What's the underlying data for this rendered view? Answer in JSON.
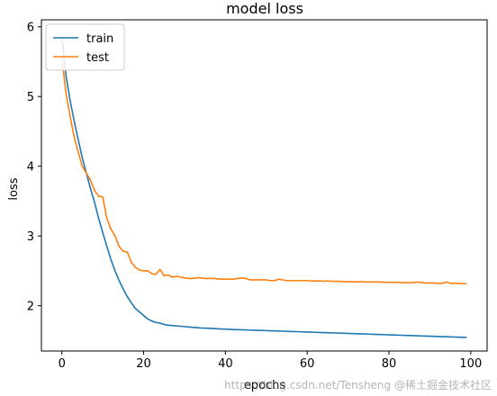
{
  "chart_data": {
    "type": "line",
    "title": "model loss",
    "xlabel": "epochs",
    "ylabel": "loss",
    "xlim": [
      -5,
      104
    ],
    "ylim": [
      1.35,
      6.1
    ],
    "xticks": [
      0,
      20,
      40,
      60,
      80,
      100
    ],
    "yticks": [
      2,
      3,
      4,
      5,
      6
    ],
    "grid": false,
    "legend_position": "top-left",
    "series": [
      {
        "name": "train",
        "color": "#1f77b4",
        "x": [
          0,
          1,
          2,
          3,
          4,
          5,
          6,
          7,
          8,
          9,
          10,
          11,
          12,
          13,
          14,
          15,
          16,
          17,
          18,
          19,
          20,
          21,
          22,
          23,
          24,
          25,
          26,
          27,
          28,
          29,
          30,
          31,
          32,
          33,
          34,
          35,
          36,
          37,
          38,
          39,
          40,
          41,
          42,
          43,
          44,
          45,
          46,
          47,
          48,
          49,
          50,
          51,
          52,
          53,
          54,
          55,
          56,
          57,
          58,
          59,
          60,
          61,
          62,
          63,
          64,
          65,
          66,
          67,
          68,
          69,
          70,
          71,
          72,
          73,
          74,
          75,
          76,
          77,
          78,
          79,
          80,
          81,
          82,
          83,
          84,
          85,
          86,
          87,
          88,
          89,
          90,
          91,
          92,
          93,
          94,
          95,
          96,
          97,
          98,
          99
        ],
        "values": [
          5.85,
          5.3,
          4.95,
          4.65,
          4.38,
          4.12,
          3.9,
          3.68,
          3.48,
          3.25,
          3.05,
          2.85,
          2.66,
          2.5,
          2.36,
          2.24,
          2.13,
          2.04,
          1.96,
          1.91,
          1.86,
          1.81,
          1.78,
          1.76,
          1.75,
          1.73,
          1.72,
          1.715,
          1.71,
          1.705,
          1.7,
          1.695,
          1.69,
          1.685,
          1.68,
          1.678,
          1.675,
          1.672,
          1.669,
          1.666,
          1.663,
          1.66,
          1.658,
          1.656,
          1.654,
          1.652,
          1.65,
          1.648,
          1.646,
          1.644,
          1.642,
          1.64,
          1.638,
          1.636,
          1.634,
          1.632,
          1.63,
          1.628,
          1.626,
          1.624,
          1.622,
          1.62,
          1.618,
          1.616,
          1.614,
          1.612,
          1.61,
          1.608,
          1.606,
          1.604,
          1.602,
          1.6,
          1.598,
          1.596,
          1.594,
          1.592,
          1.59,
          1.588,
          1.586,
          1.584,
          1.582,
          1.58,
          1.578,
          1.576,
          1.574,
          1.572,
          1.57,
          1.568,
          1.566,
          1.564,
          1.562,
          1.56,
          1.558,
          1.556,
          1.554,
          1.552,
          1.55,
          1.548,
          1.546,
          1.544
        ]
      },
      {
        "name": "test",
        "color": "#ff7f0e",
        "x": [
          0,
          1,
          2,
          3,
          4,
          5,
          6,
          7,
          8,
          9,
          10,
          11,
          12,
          13,
          14,
          15,
          16,
          17,
          18,
          19,
          20,
          21,
          22,
          23,
          24,
          25,
          26,
          27,
          28,
          29,
          30,
          31,
          32,
          33,
          34,
          35,
          36,
          37,
          38,
          39,
          40,
          41,
          42,
          43,
          44,
          45,
          46,
          47,
          48,
          49,
          50,
          51,
          52,
          53,
          54,
          55,
          56,
          57,
          58,
          59,
          60,
          61,
          62,
          63,
          64,
          65,
          66,
          67,
          68,
          69,
          70,
          71,
          72,
          73,
          74,
          75,
          76,
          77,
          78,
          79,
          80,
          81,
          82,
          83,
          84,
          85,
          86,
          87,
          88,
          89,
          90,
          91,
          92,
          93,
          94,
          95,
          96,
          97,
          98,
          99
        ],
        "values": [
          5.55,
          5.05,
          4.72,
          4.42,
          4.2,
          4.0,
          3.9,
          3.8,
          3.65,
          3.57,
          3.56,
          3.25,
          3.1,
          3.0,
          2.85,
          2.78,
          2.77,
          2.62,
          2.55,
          2.51,
          2.5,
          2.5,
          2.46,
          2.45,
          2.52,
          2.43,
          2.44,
          2.41,
          2.42,
          2.41,
          2.4,
          2.39,
          2.39,
          2.4,
          2.4,
          2.39,
          2.39,
          2.39,
          2.385,
          2.38,
          2.38,
          2.38,
          2.38,
          2.39,
          2.4,
          2.39,
          2.37,
          2.37,
          2.37,
          2.37,
          2.37,
          2.36,
          2.36,
          2.38,
          2.37,
          2.36,
          2.36,
          2.36,
          2.36,
          2.36,
          2.36,
          2.355,
          2.355,
          2.355,
          2.35,
          2.355,
          2.35,
          2.35,
          2.35,
          2.345,
          2.345,
          2.345,
          2.34,
          2.345,
          2.34,
          2.34,
          2.34,
          2.34,
          2.34,
          2.335,
          2.335,
          2.335,
          2.335,
          2.33,
          2.33,
          2.33,
          2.33,
          2.34,
          2.33,
          2.325,
          2.325,
          2.325,
          2.32,
          2.32,
          2.34,
          2.32,
          2.32,
          2.32,
          2.315,
          2.315
        ]
      }
    ]
  },
  "watermark": {
    "text": "https://blog.csdn.net/Tensheng",
    "badge": "@稀土掘金技术社区"
  }
}
